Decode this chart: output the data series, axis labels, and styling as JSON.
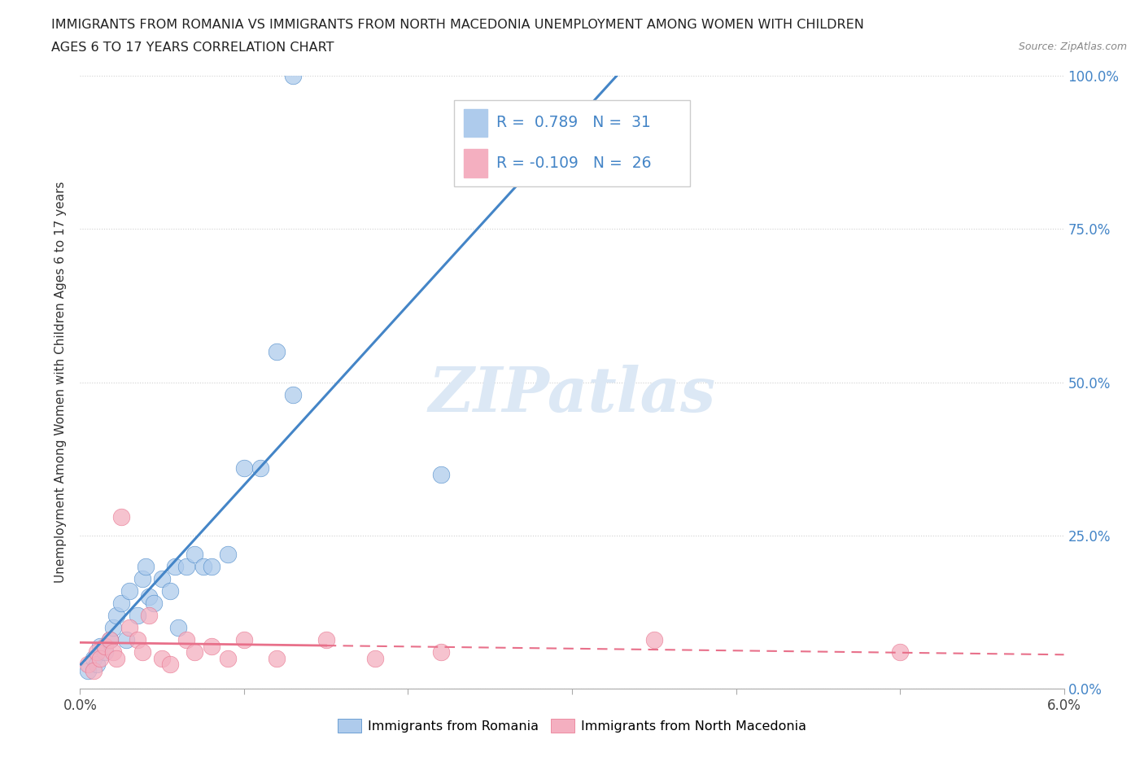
{
  "title_line1": "IMMIGRANTS FROM ROMANIA VS IMMIGRANTS FROM NORTH MACEDONIA UNEMPLOYMENT AMONG WOMEN WITH CHILDREN",
  "title_line2": "AGES 6 TO 17 YEARS CORRELATION CHART",
  "source": "Source: ZipAtlas.com",
  "ylabel": "Unemployment Among Women with Children Ages 6 to 17 years",
  "xlim": [
    0.0,
    6.0
  ],
  "ylim": [
    0.0,
    100.0
  ],
  "yticks": [
    0.0,
    25.0,
    50.0,
    75.0,
    100.0
  ],
  "xticks": [
    0.0,
    1.0,
    2.0,
    3.0,
    4.0,
    5.0,
    6.0
  ],
  "romania_R": 0.789,
  "romania_N": 31,
  "macedonia_R": -0.109,
  "macedonia_N": 26,
  "romania_color": "#aecbec",
  "macedonia_color": "#f4afc0",
  "romania_line_color": "#4485c7",
  "macedonia_line_color": "#e8708a",
  "watermark": "ZIPatlas",
  "watermark_color": "#dce8f5",
  "romania_scatter_x": [
    0.05,
    0.08,
    0.1,
    0.12,
    0.15,
    0.18,
    0.2,
    0.22,
    0.25,
    0.28,
    0.3,
    0.35,
    0.38,
    0.4,
    0.42,
    0.45,
    0.5,
    0.55,
    0.58,
    0.6,
    0.65,
    0.7,
    0.75,
    0.8,
    0.9,
    1.0,
    1.1,
    1.2,
    1.3,
    2.2,
    1.3
  ],
  "romania_scatter_y": [
    3.0,
    5.0,
    4.0,
    7.0,
    6.0,
    8.0,
    10.0,
    12.0,
    14.0,
    8.0,
    16.0,
    12.0,
    18.0,
    20.0,
    15.0,
    14.0,
    18.0,
    16.0,
    20.0,
    10.0,
    20.0,
    22.0,
    20.0,
    20.0,
    22.0,
    36.0,
    36.0,
    55.0,
    48.0,
    35.0,
    100.0
  ],
  "macedonia_scatter_x": [
    0.05,
    0.08,
    0.1,
    0.12,
    0.15,
    0.18,
    0.2,
    0.22,
    0.25,
    0.3,
    0.35,
    0.38,
    0.42,
    0.5,
    0.55,
    0.65,
    0.7,
    0.8,
    0.9,
    1.0,
    1.2,
    1.5,
    1.8,
    2.2,
    3.5,
    5.0
  ],
  "macedonia_scatter_y": [
    4.0,
    3.0,
    6.0,
    5.0,
    7.0,
    8.0,
    6.0,
    5.0,
    28.0,
    10.0,
    8.0,
    6.0,
    12.0,
    5.0,
    4.0,
    8.0,
    6.0,
    7.0,
    5.0,
    8.0,
    5.0,
    8.0,
    5.0,
    6.0,
    8.0,
    6.0
  ],
  "background_color": "#ffffff",
  "grid_color": "#d0d0d0",
  "tick_color": "#888888",
  "legend_box_color": "#cccccc"
}
